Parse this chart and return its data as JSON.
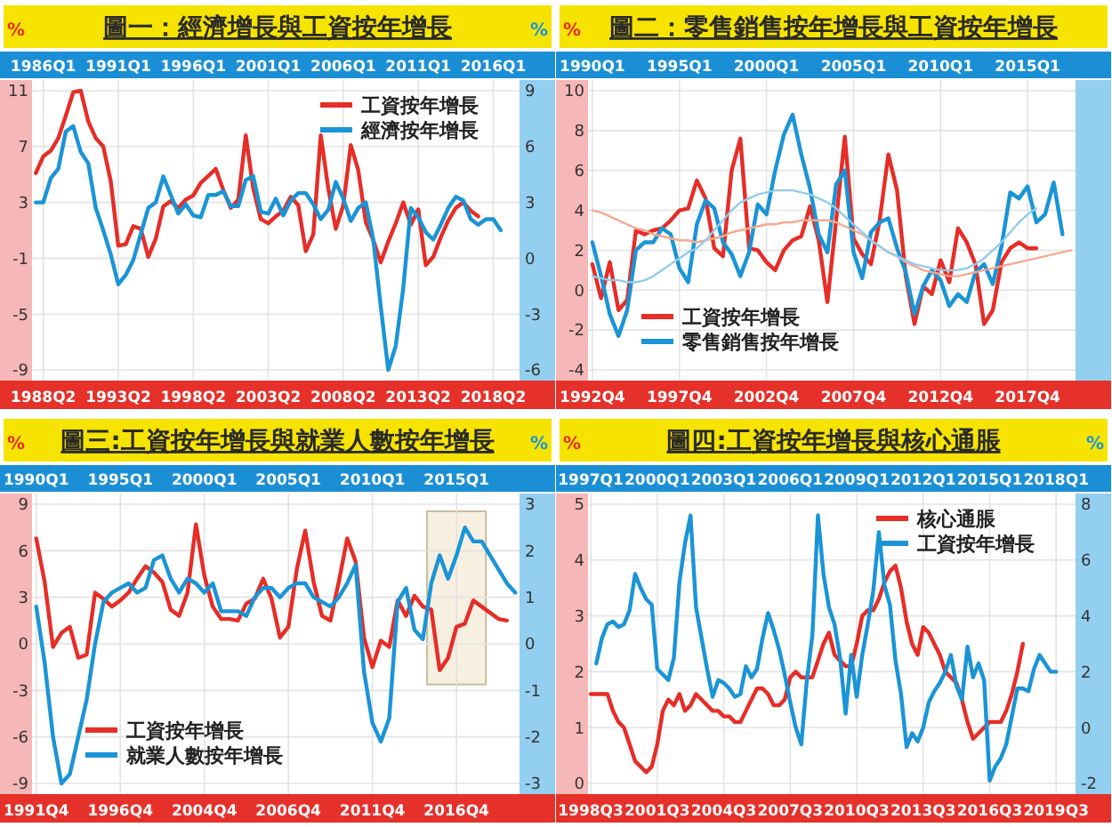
{
  "chart_data": [
    {
      "type": "line",
      "title": "圖一：經濟增長與工資按年增長",
      "ylabel": "%",
      "y2label": "%",
      "grid": true,
      "legend": "top right",
      "categories": [
        null,
        "1988Q2",
        null,
        null,
        null,
        null,
        null,
        null,
        null,
        null,
        null,
        "1993Q2",
        null,
        null,
        null,
        null,
        null,
        null,
        null,
        null,
        null,
        "1998Q2",
        null,
        null,
        null,
        null,
        null,
        null,
        null,
        null,
        null,
        "2003Q2",
        null,
        null,
        null,
        null,
        null,
        null,
        null,
        null,
        null,
        "2008Q2",
        null,
        null,
        null,
        null,
        null,
        null,
        null,
        null,
        null,
        "2013Q2",
        null,
        null,
        null,
        null,
        null,
        null,
        null,
        null,
        null,
        "2018Q2",
        null,
        null,
        null
      ],
      "annotations": [
        "1986Q1",
        "1991Q1",
        "1996Q1",
        "2001Q1",
        "2006Q1",
        "2011Q1",
        "2016Q1"
      ],
      "ylim": [
        -9,
        11
      ],
      "yticks": [
        -9,
        -5,
        -1,
        3,
        7,
        11
      ],
      "y2lim": [
        -6,
        9
      ],
      "y2ticks": [
        -6,
        -3,
        0,
        3,
        6,
        9
      ],
      "series": [
        {
          "name": "工資按年增長",
          "color": "#e62d27",
          "values": [
            5.1,
            6.3,
            6.7,
            7.6,
            9.2,
            10.9,
            11.0,
            8.8,
            7.6,
            7.0,
            4.5,
            -0.1,
            0.0,
            1.3,
            1.1,
            -0.9,
            0.4,
            2.7,
            3.1,
            2.6,
            3.2,
            3.5,
            4.4,
            4.9,
            5.4,
            3.9,
            2.6,
            3.2,
            7.8,
            4.0,
            1.8,
            1.5,
            2.0,
            2.4,
            3.4,
            2.8,
            -0.5,
            0.7,
            7.8,
            4.0,
            1.1,
            2.8,
            7.1,
            5.3,
            1.6,
            0.3,
            -1.3,
            0.2,
            1.5,
            3.0,
            1.4,
            2.5,
            -1.5,
            -0.9,
            0.5,
            1.7,
            2.6,
            3.0,
            2.4,
            2.0,
            null,
            null,
            null,
            null,
            null
          ]
        },
        {
          "name": "經濟按年增長",
          "color": "#1a94d6",
          "axis": "y2",
          "values": [
            3.0,
            3.0,
            4.3,
            4.8,
            6.8,
            7.1,
            5.7,
            5.1,
            2.7,
            1.5,
            0.2,
            -1.4,
            -0.9,
            -0.1,
            1.3,
            2.7,
            3.0,
            4.4,
            3.4,
            2.4,
            2.9,
            2.3,
            2.2,
            3.4,
            3.4,
            3.6,
            2.8,
            2.8,
            4.2,
            4.4,
            2.5,
            2.4,
            3.2,
            2.3,
            3.1,
            3.5,
            3.5,
            2.9,
            2.1,
            2.6,
            4.1,
            3.2,
            2.0,
            2.7,
            3.0,
            1.0,
            -2.6,
            -6.0,
            -4.7,
            -1.6,
            2.7,
            2.2,
            1.4,
            1.0,
            1.8,
            2.7,
            3.3,
            3.1,
            2.1,
            1.8,
            2.1,
            2.1,
            1.5,
            null,
            null
          ]
        }
      ]
    },
    {
      "type": "line",
      "title": "圖二：零售銷售按年增長與工資按年增長",
      "ylabel": "%",
      "grid": true,
      "legend": "bottom left",
      "categories": [
        "1992Q4",
        null,
        null,
        null,
        null,
        null,
        null,
        null,
        null,
        null,
        "1997Q4",
        null,
        null,
        null,
        null,
        null,
        null,
        null,
        null,
        null,
        "2002Q4",
        null,
        null,
        null,
        null,
        null,
        null,
        null,
        null,
        null,
        "2007Q4",
        null,
        null,
        null,
        null,
        null,
        null,
        null,
        null,
        null,
        "2012Q4",
        null,
        null,
        null,
        null,
        null,
        null,
        null,
        null,
        null,
        "2017Q4",
        null,
        null,
        null,
        null,
        null
      ],
      "annotations": [
        "1990Q1",
        "1995Q1",
        "2000Q1",
        "2005Q1",
        "2010Q1",
        "2015Q1"
      ],
      "ylim": [
        -4,
        10
      ],
      "yticks": [
        -4,
        -2,
        0,
        2,
        4,
        6,
        8,
        10
      ],
      "series": [
        {
          "color": "#f5a98f",
          "values": [
            4.0,
            3.9,
            3.7,
            3.5,
            3.3,
            3.1,
            3.0,
            2.8,
            2.7,
            2.6,
            2.5,
            2.5,
            2.4,
            2.5,
            2.6,
            2.7,
            2.9,
            3.0,
            3.1,
            3.2,
            3.3,
            3.3,
            3.4,
            3.4,
            3.5,
            3.5,
            3.5,
            3.5,
            3.4,
            3.2,
            3.0,
            2.8,
            2.5,
            2.2,
            1.9,
            1.7,
            1.4,
            1.2,
            1.0,
            0.9,
            0.8,
            0.7,
            0.7,
            0.8,
            0.9,
            1.0,
            1.1,
            1.2,
            1.3,
            1.4,
            1.5,
            1.6,
            1.7,
            1.8,
            1.9,
            2.0
          ]
        },
        {
          "color": "#92cbea",
          "values": [
            0.7,
            0.6,
            0.5,
            0.5,
            0.4,
            0.4,
            0.5,
            0.7,
            1.0,
            1.3,
            1.6,
            1.9,
            2.1,
            2.5,
            3.0,
            3.5,
            4.0,
            4.4,
            4.6,
            4.8,
            4.9,
            5.0,
            5.0,
            5.0,
            4.9,
            4.8,
            4.6,
            4.4,
            4.1,
            3.7,
            3.3,
            2.9,
            2.5,
            2.2,
            1.9,
            1.7,
            1.5,
            1.3,
            1.2,
            1.1,
            1.0,
            1.0,
            1.0,
            1.1,
            1.3,
            1.6,
            2.0,
            2.4,
            2.9,
            3.4,
            3.8,
            4.1,
            null,
            null,
            null,
            null
          ]
        },
        {
          "name": "工資按年增長",
          "color": "#e62d27",
          "values": [
            1.3,
            -0.4,
            1.4,
            -1.0,
            -0.5,
            3.0,
            2.8,
            3.0,
            3.1,
            3.5,
            4.0,
            4.1,
            5.5,
            4.6,
            2.1,
            1.7,
            6.0,
            7.6,
            2.1,
            2.0,
            1.4,
            1.0,
            2.0,
            2.5,
            2.7,
            4.2,
            2.5,
            -0.6,
            3.5,
            7.7,
            2.6,
            1.8,
            1.3,
            3.5,
            6.8,
            5.0,
            0.7,
            -1.7,
            0.2,
            -0.2,
            1.5,
            0.4,
            3.1,
            2.4,
            1.3,
            -1.7,
            -1.0,
            1.4,
            2.1,
            2.4,
            2.1,
            2.1,
            null,
            null,
            null,
            null
          ]
        },
        {
          "name": "零售銷售按年增長",
          "color": "#1a94d6",
          "values": [
            2.4,
            0.7,
            -1.2,
            -2.3,
            -1.0,
            2.0,
            2.4,
            2.4,
            3.1,
            2.8,
            1.1,
            0.4,
            3.3,
            4.5,
            4.1,
            2.4,
            1.8,
            0.7,
            1.9,
            4.3,
            3.8,
            6.0,
            7.8,
            8.8,
            6.8,
            5.1,
            2.8,
            1.9,
            5.3,
            6.0,
            1.9,
            0.6,
            2.9,
            3.4,
            3.6,
            2.1,
            0.9,
            -1.2,
            0.2,
            1.0,
            0.5,
            -0.8,
            -0.2,
            -0.6,
            0.9,
            1.3,
            0.3,
            2.2,
            4.9,
            4.6,
            5.2,
            3.4,
            3.8,
            5.4,
            2.8,
            null
          ]
        }
      ]
    },
    {
      "type": "line",
      "title": "圖三:工資按年增長與就業人數按年增長",
      "ylabel": "%",
      "y2label": "%",
      "grid": true,
      "legend": "bottom left",
      "categories": [
        "1991Q4",
        null,
        null,
        null,
        null,
        null,
        null,
        null,
        null,
        null,
        "1996Q4",
        null,
        null,
        null,
        null,
        null,
        null,
        null,
        null,
        null,
        "2004Q4",
        null,
        null,
        null,
        null,
        null,
        null,
        null,
        null,
        null,
        "2006Q4",
        null,
        null,
        null,
        null,
        null,
        null,
        null,
        null,
        null,
        "2011Q4",
        null,
        null,
        null,
        null,
        null,
        null,
        null,
        null,
        null,
        "2016Q4",
        null,
        null,
        null,
        null,
        null,
        null,
        null
      ],
      "annotations": [
        "1990Q1",
        "1995Q1",
        "2000Q1",
        "2005Q1",
        "2010Q1",
        "2015Q1"
      ],
      "ylim": [
        -9,
        9
      ],
      "yticks": [
        -9,
        -6,
        -3,
        0,
        3,
        6,
        9
      ],
      "y2lim": [
        -3,
        3
      ],
      "y2ticks": [
        -3,
        -2,
        -1,
        0,
        1,
        2,
        3
      ],
      "series": [
        {
          "name": "工資按年增長",
          "color": "#e62d27",
          "values": [
            6.8,
            4.0,
            -0.2,
            0.7,
            1.1,
            -0.9,
            -0.7,
            3.3,
            2.9,
            2.4,
            2.8,
            3.3,
            4.2,
            5.0,
            4.6,
            4.0,
            2.2,
            1.8,
            3.3,
            7.7,
            4.4,
            2.4,
            1.6,
            1.6,
            1.5,
            2.6,
            2.9,
            4.2,
            2.9,
            0.4,
            1.1,
            4.8,
            7.3,
            4.0,
            1.8,
            1.5,
            4.0,
            6.8,
            5.3,
            0.4,
            -1.5,
            0.2,
            -0.2,
            2.8,
            1.8,
            3.1,
            2.4,
            2.2,
            -1.7,
            -0.9,
            1.1,
            1.3,
            2.8,
            2.4,
            2.0,
            1.6,
            1.5,
            null
          ]
        },
        {
          "name": "就業人數按年增長",
          "color": "#1a94d6",
          "axis": "y2",
          "values": [
            0.8,
            -0.4,
            -2.0,
            -3.0,
            -2.8,
            -2.0,
            -1.2,
            0.0,
            0.9,
            1.1,
            1.2,
            1.3,
            1.1,
            1.2,
            1.8,
            1.9,
            1.4,
            1.1,
            1.4,
            1.3,
            1.1,
            1.3,
            0.7,
            0.7,
            0.7,
            0.6,
            1.0,
            1.2,
            1.2,
            1.0,
            1.2,
            1.3,
            1.3,
            1.0,
            0.9,
            0.8,
            1.0,
            1.3,
            1.7,
            -0.6,
            -1.7,
            -2.1,
            -1.6,
            0.9,
            1.2,
            0.3,
            0.1,
            1.3,
            1.9,
            1.4,
            1.9,
            2.5,
            2.2,
            2.2,
            1.9,
            1.6,
            1.3,
            1.1
          ]
        }
      ]
    },
    {
      "type": "line",
      "title": "圖四:工資按年增長與核心通脹",
      "ylabel": "%",
      "y2label": "%",
      "grid": true,
      "legend": "top right",
      "categories": [
        "1998Q3",
        null,
        null,
        null,
        null,
        null,
        null,
        null,
        null,
        null,
        null,
        null,
        "2001Q3",
        null,
        null,
        null,
        null,
        null,
        null,
        null,
        null,
        null,
        null,
        null,
        "2004Q3",
        null,
        null,
        null,
        null,
        null,
        null,
        null,
        null,
        null,
        null,
        null,
        "2007Q3",
        null,
        null,
        null,
        null,
        null,
        null,
        null,
        null,
        null,
        null,
        null,
        "2010Q3",
        null,
        null,
        null,
        null,
        null,
        null,
        null,
        null,
        null,
        null,
        null,
        "2013Q3",
        null,
        null,
        null,
        null,
        null,
        null,
        null,
        null,
        null,
        null,
        null,
        "2016Q3",
        null,
        null,
        null,
        null,
        null,
        null,
        null,
        null,
        null,
        null,
        null,
        "2019Q3",
        null,
        null,
        null
      ],
      "annotations": [
        "1997Q1",
        "2000Q1",
        "2003Q1",
        "2006Q1",
        "2009Q1",
        "2012Q1",
        "2015Q1",
        "2018Q1"
      ],
      "ylim": [
        0,
        5
      ],
      "yticks": [
        0,
        1,
        2,
        3,
        4,
        5
      ],
      "y2lim": [
        -2,
        8
      ],
      "y2ticks": [
        -2,
        0,
        2,
        4,
        6,
        8
      ],
      "series": [
        {
          "name": "核心通脹",
          "color": "#e62d27",
          "values": [
            1.6,
            1.6,
            1.6,
            1.6,
            1.3,
            1.1,
            1.0,
            0.7,
            0.4,
            0.3,
            0.2,
            0.3,
            0.7,
            1.3,
            1.5,
            1.4,
            1.6,
            1.3,
            1.4,
            1.6,
            1.5,
            1.4,
            1.3,
            1.3,
            1.2,
            1.2,
            1.1,
            1.1,
            1.3,
            1.5,
            1.7,
            1.7,
            1.6,
            1.4,
            1.4,
            1.5,
            1.9,
            2.0,
            1.9,
            1.9,
            1.9,
            2.2,
            2.5,
            2.7,
            2.3,
            2.2,
            2.1,
            2.1,
            2.5,
            3.0,
            3.1,
            3.1,
            3.3,
            3.6,
            3.8,
            3.9,
            3.5,
            2.9,
            2.5,
            2.3,
            2.8,
            2.7,
            2.5,
            2.3,
            2.0,
            1.9,
            1.8,
            1.5,
            1.1,
            0.8,
            0.9,
            1.0,
            1.1,
            1.1,
            1.1,
            1.3,
            1.6,
            2.0,
            2.5,
            null,
            null,
            null,
            null,
            null,
            null,
            null,
            null,
            null
          ]
        },
        {
          "name": "工資按年增長",
          "color": "#1a94d6",
          "axis": "y2",
          "values": [
            null,
            2.3,
            3.2,
            3.7,
            3.8,
            3.6,
            3.7,
            4.2,
            5.5,
            5.0,
            4.6,
            4.4,
            2.1,
            1.9,
            1.7,
            2.5,
            5.2,
            6.6,
            7.6,
            4.3,
            3.2,
            2.1,
            1.1,
            1.7,
            1.6,
            1.4,
            1.1,
            1.2,
            2.2,
            1.8,
            2.1,
            3.2,
            4.1,
            3.5,
            2.8,
            1.9,
            0.9,
            0.0,
            -0.6,
            1.7,
            3.3,
            7.6,
            5.5,
            4.3,
            3.7,
            2.5,
            0.5,
            2.6,
            1.1,
            2.6,
            3.7,
            4.9,
            7.0,
            5.1,
            4.4,
            2.4,
            1.2,
            -0.7,
            -0.2,
            -0.5,
            0.0,
            0.9,
            1.3,
            1.6,
            2.0,
            2.6,
            1.5,
            1.0,
            2.9,
            1.8,
            2.3,
            1.7,
            -1.9,
            -1.4,
            -1.1,
            -0.6,
            0.4,
            1.4,
            1.4,
            1.3,
            2.1,
            2.6,
            2.3,
            2.0,
            2.0,
            null,
            null,
            null
          ]
        }
      ]
    }
  ]
}
